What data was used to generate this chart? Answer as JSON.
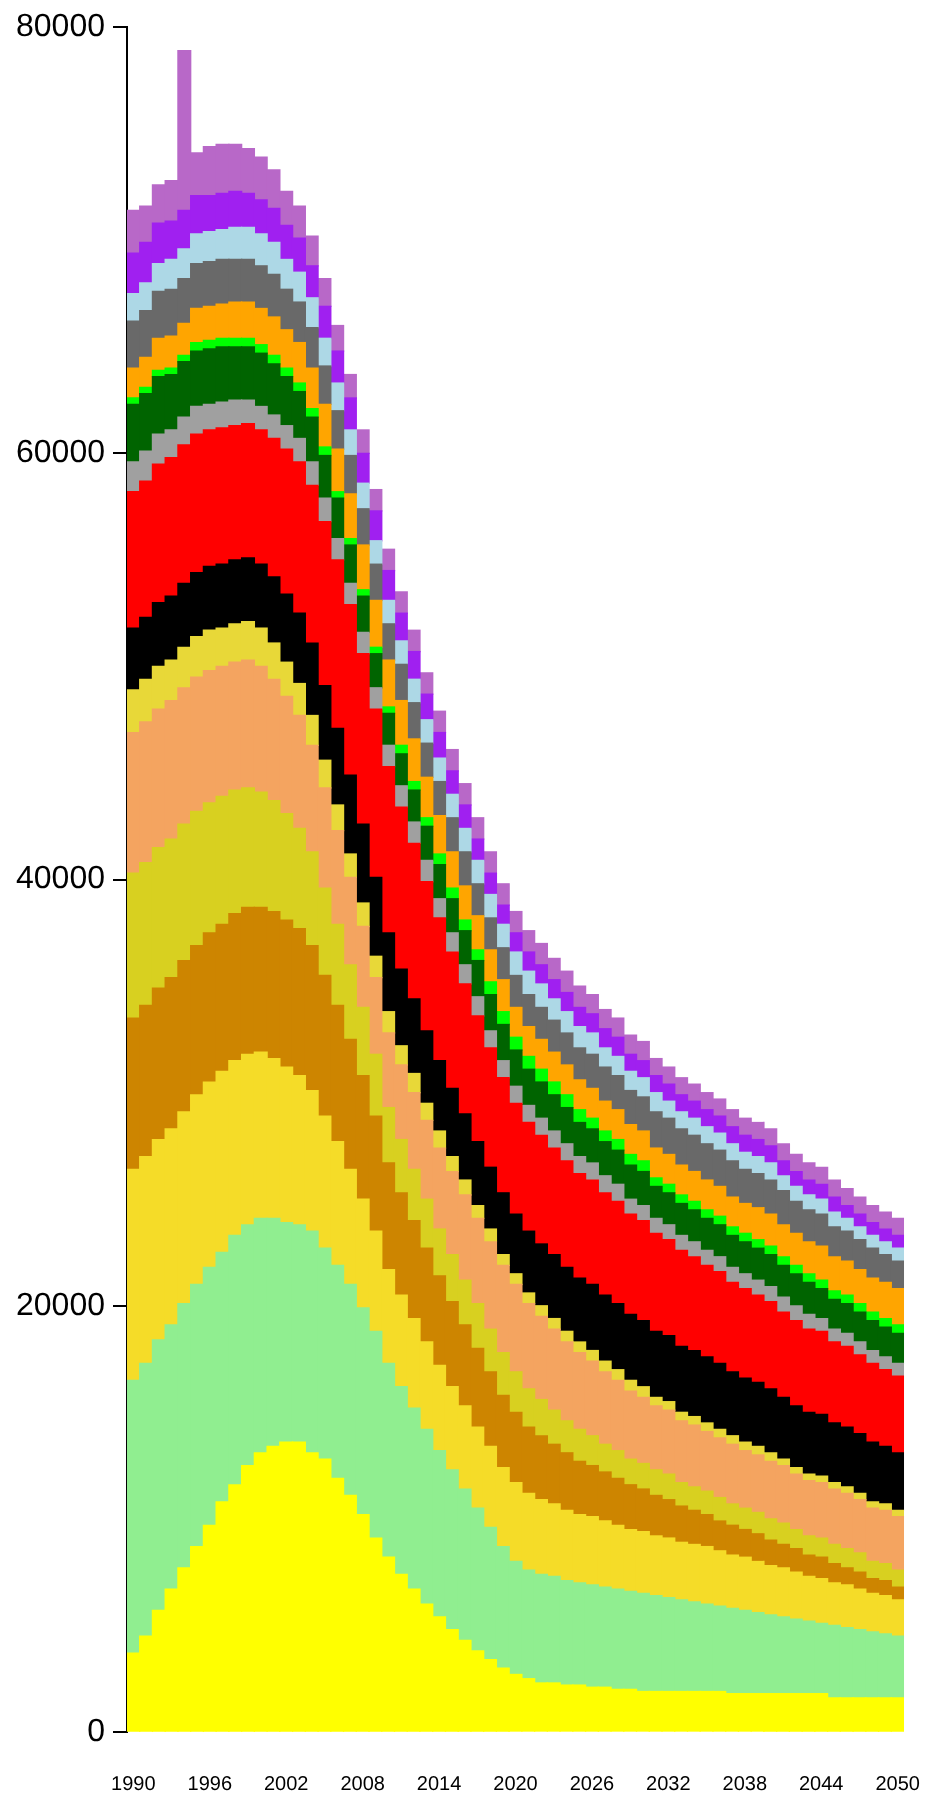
{
  "chart_data": {
    "type": "bar",
    "stacked": true,
    "grid": false,
    "legend": false,
    "categories": [
      "1990",
      null,
      null,
      null,
      null,
      null,
      "1996",
      null,
      null,
      null,
      null,
      null,
      "2002",
      null,
      null,
      null,
      null,
      null,
      "2008",
      null,
      null,
      null,
      null,
      null,
      "2014",
      null,
      null,
      null,
      null,
      null,
      "2020",
      null,
      null,
      null,
      null,
      null,
      "2026",
      null,
      null,
      null,
      null,
      null,
      "2032",
      null,
      null,
      null,
      null,
      null,
      "2038",
      null,
      null,
      null,
      null,
      null,
      "2044",
      null,
      null,
      null,
      null,
      null,
      "2050"
    ],
    "ylim": [
      0,
      80000
    ],
    "yticks": [
      0,
      20000,
      40000,
      60000,
      80000
    ],
    "series": [
      {
        "color": "#ffff00",
        "values": [
          3700,
          4500,
          5700,
          6700,
          7700,
          8700,
          9700,
          10800,
          11600,
          12500,
          13100,
          13400,
          13600,
          13600,
          13100,
          12800,
          11900,
          11100,
          10200,
          9100,
          8200,
          7400,
          6700,
          6000,
          5400,
          4800,
          4300,
          3800,
          3400,
          3000,
          2700,
          2500,
          2300,
          2300,
          2200,
          2200,
          2100,
          2100,
          2000,
          2000,
          1900,
          1900,
          1900,
          1900,
          1900,
          1900,
          1900,
          1800,
          1800,
          1800,
          1800,
          1800,
          1800,
          1800,
          1800,
          1600,
          1600,
          1600,
          1600,
          1600,
          1600
        ]
      },
      {
        "color": "#90ee90",
        "values": [
          12800,
          12800,
          12700,
          12400,
          12400,
          12300,
          12100,
          11700,
          11700,
          11300,
          11000,
          10700,
          10300,
          10200,
          10400,
          9900,
          10000,
          9900,
          9700,
          9700,
          9100,
          8800,
          8500,
          8200,
          7800,
          7500,
          7100,
          6700,
          6200,
          5700,
          5300,
          5100,
          5100,
          5000,
          4900,
          4800,
          4800,
          4700,
          4700,
          4600,
          4600,
          4500,
          4400,
          4300,
          4200,
          4100,
          4000,
          4000,
          3900,
          3800,
          3700,
          3600,
          3500,
          3400,
          3300,
          3400,
          3300,
          3200,
          3100,
          3000,
          2900
        ]
      },
      {
        "color": "#f5dc28",
        "values": [
          9900,
          9700,
          9400,
          9200,
          9000,
          8900,
          8700,
          8500,
          8200,
          8000,
          7800,
          7500,
          7300,
          7000,
          6600,
          6200,
          5800,
          5400,
          5100,
          4700,
          4400,
          4300,
          4200,
          4100,
          4000,
          3900,
          3900,
          3800,
          3800,
          3700,
          3700,
          3600,
          3500,
          3400,
          3300,
          3200,
          3200,
          3100,
          3000,
          2900,
          2900,
          2800,
          2800,
          2700,
          2700,
          2700,
          2600,
          2500,
          2500,
          2400,
          2300,
          2300,
          2200,
          2100,
          2100,
          2000,
          2000,
          1900,
          1800,
          1800,
          1700
        ]
      },
      {
        "color": "#cd8500",
        "values": [
          7100,
          7100,
          7100,
          7100,
          7100,
          7000,
          7000,
          6900,
          6900,
          6900,
          6800,
          6900,
          6900,
          6900,
          6800,
          6600,
          6400,
          6100,
          5800,
          5400,
          5000,
          4800,
          4600,
          4400,
          4200,
          4000,
          3800,
          3700,
          3500,
          3400,
          3300,
          3100,
          3000,
          2800,
          2700,
          2500,
          2400,
          2300,
          2200,
          2100,
          2000,
          1900,
          1800,
          1700,
          1600,
          1500,
          1400,
          1400,
          1300,
          1300,
          1200,
          1100,
          1100,
          1000,
          1000,
          900,
          800,
          800,
          700,
          700,
          600
        ]
      },
      {
        "color": "#d8d020",
        "values": [
          6800,
          6700,
          6600,
          6500,
          6400,
          6300,
          6100,
          6000,
          5800,
          5600,
          5400,
          5200,
          5000,
          4700,
          4400,
          4100,
          3800,
          3500,
          3200,
          2900,
          2600,
          2500,
          2400,
          2300,
          2200,
          2200,
          2100,
          2100,
          2000,
          2000,
          1900,
          1800,
          1700,
          1600,
          1500,
          1500,
          1400,
          1300,
          1300,
          1200,
          1200,
          1200,
          1200,
          1100,
          1100,
          1100,
          1100,
          1000,
          1000,
          1000,
          1000,
          1000,
          900,
          900,
          900,
          900,
          900,
          900,
          800,
          800,
          800
        ]
      },
      {
        "color": "#f4a460",
        "values": [
          6600,
          6600,
          6500,
          6500,
          6400,
          6300,
          6200,
          6100,
          6000,
          6000,
          5900,
          5700,
          5500,
          5300,
          5000,
          4700,
          4400,
          4100,
          3800,
          3600,
          3500,
          3500,
          3600,
          3700,
          3800,
          3900,
          4000,
          4000,
          4100,
          4100,
          4100,
          4000,
          3900,
          3800,
          3700,
          3600,
          3500,
          3400,
          3300,
          3200,
          3100,
          3000,
          3000,
          2900,
          2900,
          2800,
          2800,
          2800,
          2700,
          2700,
          2700,
          2700,
          2600,
          2600,
          2600,
          2600,
          2600,
          2500,
          2500,
          2500,
          2500
        ]
      },
      {
        "color": "#e8d838",
        "values": [
          2000,
          2000,
          2000,
          1900,
          1900,
          1900,
          1900,
          1800,
          1800,
          1800,
          1800,
          1700,
          1600,
          1500,
          1400,
          1300,
          1200,
          1100,
          1100,
          1000,
          1000,
          900,
          900,
          800,
          800,
          700,
          700,
          600,
          600,
          500,
          500,
          500,
          500,
          500,
          500,
          500,
          500,
          500,
          500,
          500,
          500,
          400,
          400,
          400,
          400,
          400,
          400,
          400,
          400,
          400,
          400,
          300,
          300,
          300,
          300,
          300,
          300,
          300,
          300,
          300,
          300
        ]
      },
      {
        "color": "#000000",
        "values": [
          2900,
          2900,
          3000,
          3000,
          3000,
          3000,
          3000,
          3000,
          3000,
          3000,
          3000,
          3100,
          3200,
          3300,
          3400,
          3500,
          3600,
          3700,
          3700,
          3700,
          3700,
          3600,
          3500,
          3400,
          3300,
          3200,
          3100,
          3000,
          2900,
          2900,
          2800,
          2900,
          2900,
          3000,
          3000,
          3000,
          3100,
          3100,
          3100,
          3100,
          3100,
          3100,
          3100,
          3100,
          3100,
          3100,
          3100,
          3000,
          3000,
          3000,
          3000,
          2900,
          2900,
          2900,
          2900,
          2800,
          2800,
          2800,
          2800,
          2700,
          2700
        ]
      },
      {
        "color": "#ff0000",
        "values": [
          6400,
          6400,
          6500,
          6500,
          6500,
          6500,
          6400,
          6400,
          6300,
          6300,
          6300,
          6500,
          6800,
          7100,
          7400,
          7700,
          7900,
          8000,
          8000,
          7900,
          7800,
          7600,
          7300,
          7000,
          6700,
          6400,
          6100,
          5900,
          5600,
          5400,
          5200,
          5100,
          5100,
          5000,
          5000,
          4900,
          4900,
          4800,
          4800,
          4700,
          4700,
          4600,
          4500,
          4500,
          4400,
          4300,
          4300,
          4200,
          4200,
          4100,
          4100,
          4000,
          4000,
          3900,
          3900,
          3800,
          3800,
          3700,
          3700,
          3600,
          3600
        ]
      },
      {
        "color": "#a0a0a0",
        "values": [
          1400,
          1400,
          1400,
          1300,
          1300,
          1300,
          1200,
          1200,
          1200,
          1100,
          1100,
          1100,
          1100,
          1100,
          1100,
          1100,
          1000,
          1000,
          1000,
          1000,
          1000,
          1000,
          1000,
          1000,
          900,
          900,
          900,
          900,
          800,
          800,
          800,
          800,
          800,
          800,
          800,
          800,
          800,
          800,
          800,
          700,
          700,
          700,
          700,
          700,
          700,
          700,
          700,
          700,
          700,
          700,
          700,
          700,
          700,
          700,
          600,
          600,
          600,
          600,
          600,
          600,
          600
        ]
      },
      {
        "color": "#006400",
        "values": [
          2700,
          2700,
          2700,
          2600,
          2600,
          2600,
          2600,
          2600,
          2500,
          2500,
          2500,
          2400,
          2300,
          2200,
          2100,
          2000,
          1900,
          1800,
          1700,
          1600,
          1500,
          1500,
          1500,
          1600,
          1600,
          1600,
          1600,
          1700,
          1700,
          1700,
          1700,
          1700,
          1700,
          1700,
          1700,
          1600,
          1600,
          1600,
          1600,
          1600,
          1600,
          1500,
          1500,
          1500,
          1500,
          1500,
          1500,
          1500,
          1500,
          1500,
          1500,
          1500,
          1500,
          1500,
          1400,
          1400,
          1400,
          1400,
          1400,
          1400,
          1400
        ]
      },
      {
        "color": "#00ff00",
        "values": [
          300,
          300,
          300,
          300,
          300,
          400,
          400,
          400,
          400,
          400,
          400,
          400,
          400,
          400,
          400,
          400,
          300,
          300,
          300,
          300,
          300,
          400,
          400,
          400,
          500,
          500,
          500,
          500,
          600,
          600,
          600,
          600,
          600,
          600,
          600,
          600,
          500,
          500,
          500,
          500,
          500,
          400,
          400,
          400,
          400,
          400,
          400,
          400,
          400,
          400,
          400,
          400,
          400,
          400,
          400,
          400,
          400,
          400,
          400,
          400,
          400
        ]
      },
      {
        "color": "#ffa500",
        "values": [
          1400,
          1400,
          1500,
          1500,
          1500,
          1600,
          1600,
          1600,
          1700,
          1700,
          1700,
          1800,
          1800,
          1900,
          1900,
          2000,
          2000,
          2100,
          2100,
          2200,
          2200,
          2100,
          2000,
          1900,
          1800,
          1700,
          1600,
          1600,
          1500,
          1500,
          1400,
          1400,
          1400,
          1400,
          1400,
          1400,
          1400,
          1400,
          1400,
          1400,
          1400,
          1400,
          1400,
          1400,
          1400,
          1400,
          1400,
          1400,
          1400,
          1500,
          1500,
          1500,
          1500,
          1500,
          1600,
          1600,
          1600,
          1600,
          1600,
          1700,
          1700
        ]
      },
      {
        "color": "#696969",
        "values": [
          2200,
          2200,
          2200,
          2200,
          2100,
          2100,
          2100,
          2100,
          2000,
          2000,
          2000,
          2000,
          1900,
          1900,
          1900,
          1800,
          1800,
          1800,
          1700,
          1700,
          1700,
          1700,
          1700,
          1600,
          1600,
          1600,
          1600,
          1500,
          1500,
          1500,
          1500,
          1500,
          1500,
          1500,
          1500,
          1500,
          1600,
          1600,
          1600,
          1600,
          1600,
          1700,
          1700,
          1700,
          1700,
          1700,
          1700,
          1700,
          1600,
          1600,
          1600,
          1600,
          1500,
          1500,
          1500,
          1400,
          1400,
          1400,
          1400,
          1300,
          1300
        ]
      },
      {
        "color": "#add8e6",
        "values": [
          1300,
          1300,
          1300,
          1400,
          1400,
          1400,
          1400,
          1400,
          1500,
          1500,
          1500,
          1500,
          1400,
          1400,
          1400,
          1300,
          1300,
          1200,
          1200,
          1100,
          1100,
          1100,
          1100,
          1100,
          1100,
          1100,
          1100,
          1100,
          1100,
          1100,
          1100,
          1100,
          1100,
          1000,
          1000,
          1000,
          1000,
          900,
          900,
          900,
          900,
          900,
          800,
          800,
          800,
          800,
          800,
          800,
          800,
          800,
          800,
          700,
          700,
          700,
          700,
          700,
          600,
          600,
          600,
          600,
          600
        ]
      },
      {
        "color": "#a020f0",
        "values": [
          1900,
          1900,
          1900,
          1800,
          1800,
          1800,
          1700,
          1700,
          1700,
          1600,
          1600,
          1600,
          1600,
          1600,
          1500,
          1500,
          1500,
          1500,
          1400,
          1400,
          1400,
          1300,
          1300,
          1200,
          1200,
          1100,
          1100,
          1000,
          1000,
          900,
          900,
          900,
          900,
          900,
          900,
          900,
          900,
          900,
          900,
          800,
          800,
          800,
          800,
          800,
          800,
          800,
          800,
          800,
          800,
          800,
          800,
          700,
          700,
          700,
          700,
          700,
          600,
          600,
          600,
          600,
          600
        ]
      },
      {
        "color": "#b868c8",
        "values": [
          2000,
          1700,
          1800,
          1900,
          7500,
          2000,
          2300,
          2300,
          2200,
          2100,
          2000,
          1800,
          1600,
          1500,
          1400,
          1300,
          1200,
          1100,
          1100,
          1000,
          1000,
          1000,
          1000,
          1000,
          1000,
          1000,
          1000,
          1000,
          1000,
          1000,
          1000,
          1000,
          1000,
          1000,
          1000,
          1000,
          900,
          900,
          900,
          900,
          900,
          800,
          800,
          800,
          800,
          800,
          800,
          800,
          800,
          800,
          800,
          800,
          800,
          800,
          800,
          800,
          800,
          800,
          800,
          800,
          800
        ]
      }
    ]
  }
}
